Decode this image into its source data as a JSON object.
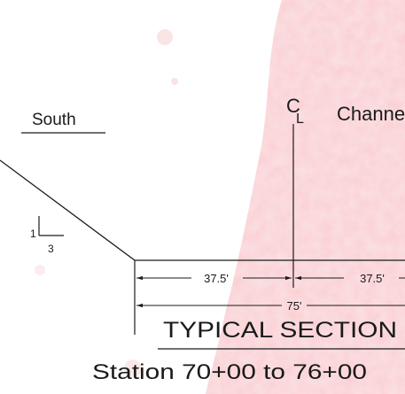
{
  "colors": {
    "ink": "#1a1a1a",
    "background": "#ffffff",
    "stain": "#f4b9bd"
  },
  "labels": {
    "side": "South",
    "centerline_symbol": "C",
    "centerline_symbol_sub": "L",
    "channel": "Channel",
    "slope_rise": "1",
    "slope_run": "3",
    "dim_left": "37.5'",
    "dim_right": "37.5'",
    "dim_total": "75'",
    "section_title": "TYPICAL SECTION",
    "station_range": "Station 70+00 to 76+00"
  }
}
